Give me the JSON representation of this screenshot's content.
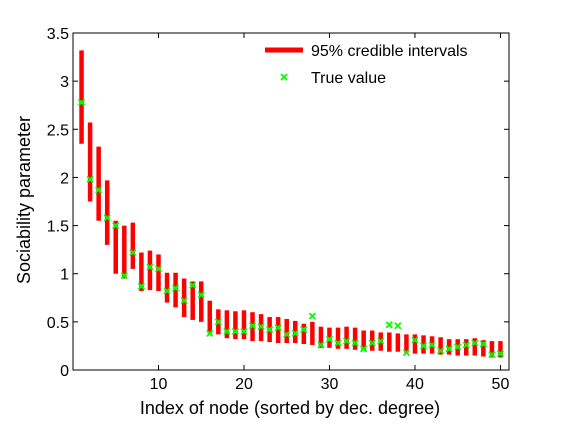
{
  "chart_data": {
    "type": "errorbar-scatter",
    "title": "",
    "xlabel": "Index of node (sorted by dec. degree)",
    "ylabel": "Sociability parameter",
    "xlim": [
      0,
      51
    ],
    "ylim": [
      0,
      3.5
    ],
    "xticks": [
      10,
      20,
      30,
      40,
      50
    ],
    "yticks": [
      0,
      0.5,
      1,
      1.5,
      2,
      2.5,
      3,
      3.5
    ],
    "xtick_labels": [
      "10",
      "20",
      "30",
      "40",
      "50"
    ],
    "ytick_labels": [
      "0",
      "0.5",
      "1",
      "1.5",
      "2",
      "2.5",
      "3",
      "3.5"
    ],
    "grid": false,
    "legend_position": "top-right",
    "legend": [
      {
        "label": "95% credible intervals",
        "marker": "line",
        "color": "#ff0000"
      },
      {
        "label": "True value",
        "marker": "x",
        "color": "#00ff00"
      }
    ],
    "x": [
      1,
      2,
      3,
      4,
      5,
      6,
      7,
      8,
      9,
      10,
      11,
      12,
      13,
      14,
      15,
      16,
      17,
      18,
      19,
      20,
      21,
      22,
      23,
      24,
      25,
      26,
      27,
      28,
      29,
      30,
      31,
      32,
      33,
      34,
      35,
      36,
      37,
      38,
      39,
      40,
      41,
      42,
      43,
      44,
      45,
      46,
      47,
      48,
      49,
      50
    ],
    "series": [
      {
        "name": "95% credible intervals",
        "type": "interval",
        "color": "#ff0000",
        "lower": [
          2.35,
          1.75,
          1.55,
          1.3,
          1.0,
          0.95,
          1.05,
          0.82,
          0.83,
          0.82,
          0.7,
          0.65,
          0.55,
          0.52,
          0.5,
          0.38,
          0.37,
          0.33,
          0.32,
          0.32,
          0.3,
          0.3,
          0.29,
          0.28,
          0.28,
          0.28,
          0.27,
          0.26,
          0.23,
          0.23,
          0.22,
          0.22,
          0.21,
          0.21,
          0.2,
          0.2,
          0.19,
          0.19,
          0.18,
          0.17,
          0.17,
          0.17,
          0.16,
          0.16,
          0.15,
          0.15,
          0.15,
          0.14,
          0.13,
          0.13
        ],
        "upper": [
          3.32,
          2.57,
          2.32,
          1.97,
          1.55,
          1.5,
          1.53,
          1.22,
          1.24,
          1.2,
          1.01,
          1.01,
          0.95,
          0.92,
          0.92,
          0.72,
          0.63,
          0.62,
          0.61,
          0.62,
          0.6,
          0.58,
          0.55,
          0.55,
          0.53,
          0.51,
          0.48,
          0.5,
          0.45,
          0.44,
          0.44,
          0.45,
          0.44,
          0.41,
          0.41,
          0.39,
          0.39,
          0.38,
          0.37,
          0.37,
          0.36,
          0.35,
          0.34,
          0.32,
          0.32,
          0.32,
          0.33,
          0.31,
          0.3,
          0.3
        ]
      },
      {
        "name": "True value",
        "type": "scatter",
        "color": "#00ff00",
        "values": [
          2.78,
          1.98,
          1.87,
          1.58,
          1.5,
          0.98,
          1.22,
          0.87,
          1.07,
          1.05,
          0.82,
          0.85,
          0.72,
          0.88,
          0.78,
          0.38,
          0.5,
          0.4,
          0.4,
          0.4,
          0.46,
          0.45,
          0.42,
          0.44,
          0.37,
          0.38,
          0.42,
          0.56,
          0.26,
          0.32,
          0.28,
          0.3,
          0.28,
          0.22,
          0.28,
          0.3,
          0.47,
          0.46,
          0.18,
          0.31,
          0.25,
          0.26,
          0.2,
          0.22,
          0.24,
          0.26,
          0.28,
          0.27,
          0.16,
          0.17
        ]
      }
    ]
  }
}
